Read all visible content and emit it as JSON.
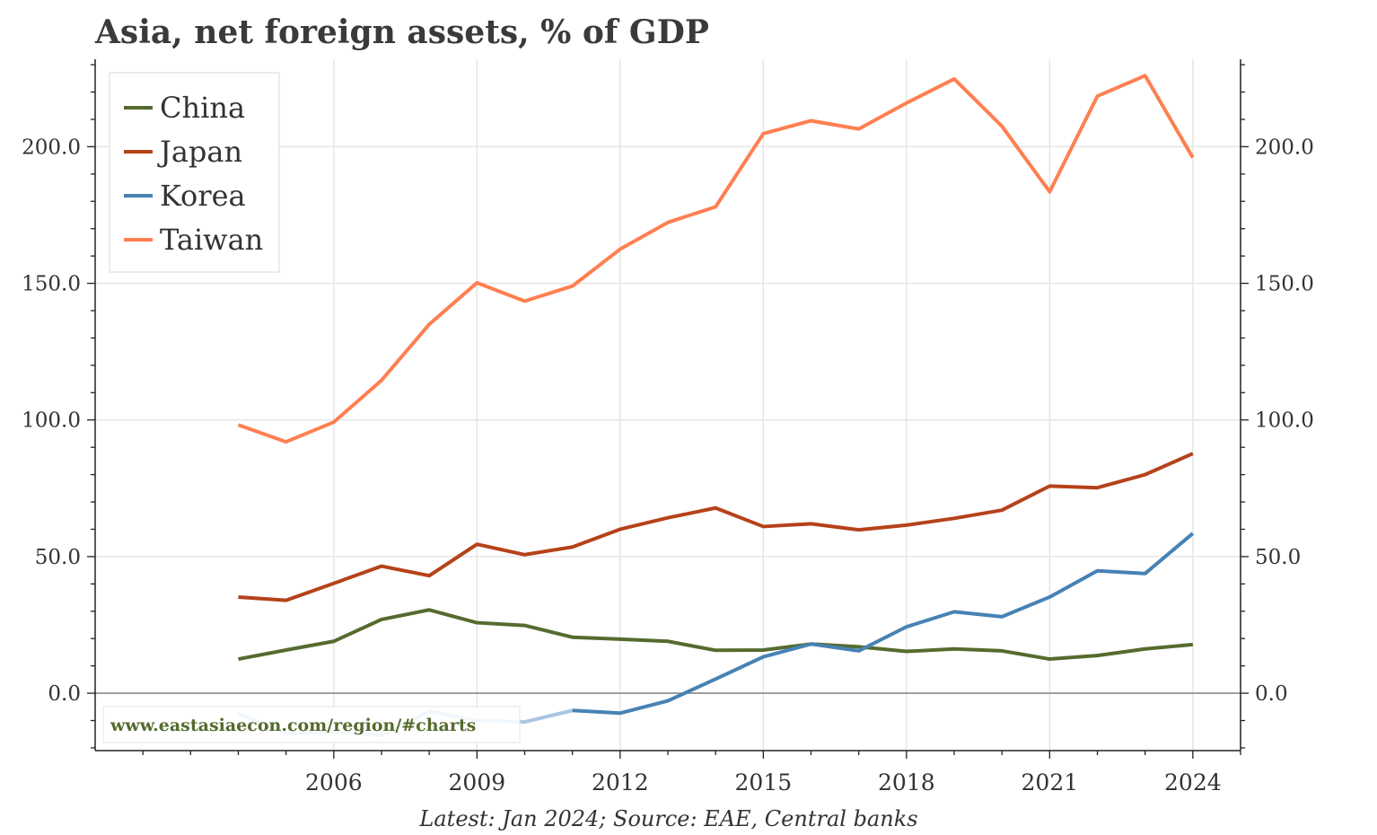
{
  "chart_data": {
    "type": "line",
    "title": "Asia, net foreign assets, % of GDP",
    "xlabel": "",
    "ylabel": "",
    "x": [
      2004,
      2005,
      2006,
      2007,
      2008,
      2009,
      2010,
      2011,
      2012,
      2013,
      2014,
      2015,
      2016,
      2017,
      2018,
      2019,
      2020,
      2021,
      2022,
      2023,
      2024
    ],
    "xticks": [
      2006,
      2009,
      2012,
      2015,
      2018,
      2021,
      2024
    ],
    "xtick_labels": [
      "2006",
      "2009",
      "2012",
      "2015",
      "2018",
      "2021",
      "2024"
    ],
    "xlim": [
      2001,
      2025
    ],
    "ylim": [
      -21,
      232
    ],
    "yticks": [
      0,
      50,
      100,
      150,
      200
    ],
    "ytick_labels": [
      "0.0",
      "50.0",
      "100.0",
      "150.0",
      "200.0"
    ],
    "grid": true,
    "legend_position": "top-left",
    "series": [
      {
        "name": "China",
        "color": "#556b2f",
        "values": [
          12.5,
          15.8,
          19,
          27,
          30.5,
          25.8,
          24.8,
          20.5,
          19.8,
          19,
          15.7,
          15.8,
          18,
          17,
          15.3,
          16.2,
          15.5,
          12.5,
          13.8,
          16.2,
          17.8
        ]
      },
      {
        "name": "Japan",
        "color": "#b5421a",
        "values": [
          35.2,
          34,
          40.2,
          46.5,
          43,
          54.5,
          50.7,
          53.5,
          60,
          64.2,
          67.8,
          61,
          62,
          59.8,
          61.5,
          64,
          67,
          75.8,
          75.2,
          80,
          87.7
        ]
      },
      {
        "name": "Korea",
        "color": "#4682b4",
        "faded_color": "#a9c6e0",
        "faded_until": 2011,
        "values": [
          -7.3,
          -14.8,
          -14,
          -15.4,
          -6.6,
          -10,
          -10.5,
          -6.3,
          -7.3,
          -2.8,
          5.2,
          13.3,
          18,
          15.5,
          24.3,
          29.8,
          28,
          35.2,
          44.8,
          43.8,
          58.5
        ]
      },
      {
        "name": "Taiwan",
        "color": "#ff7f50",
        "values": [
          98.2,
          92,
          99.2,
          114.5,
          135,
          150.2,
          143.5,
          149,
          162.5,
          172.3,
          178,
          204.8,
          209.5,
          206.5,
          216,
          224.8,
          207.5,
          183.5,
          218.5,
          226,
          196
        ]
      }
    ],
    "annotations": {
      "watermark": "www.eastasiaecon.com/region/#charts",
      "footer": "Latest: Jan 2024; Source: EAE, Central banks"
    }
  }
}
